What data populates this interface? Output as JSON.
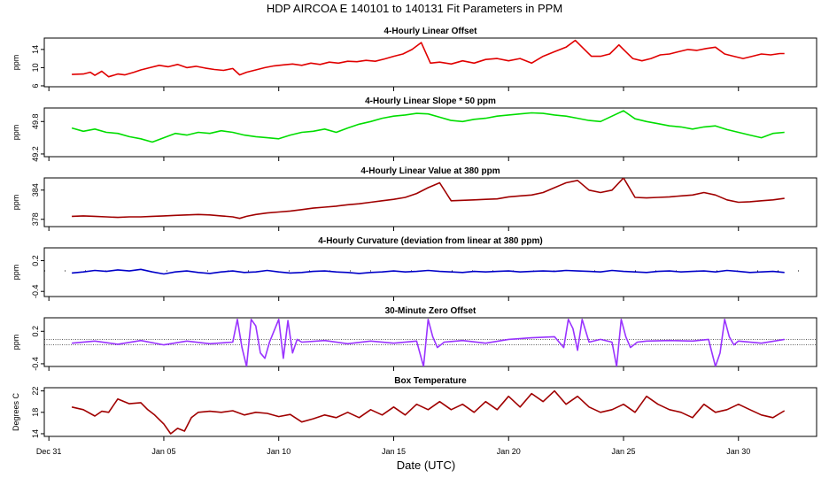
{
  "figure": {
    "title": "HDP   AIRCOA E   140101 to 140131   Fit Parameters in PPM",
    "xlabel": "Date (UTC)",
    "x_tick_labels": [
      "Dec 31",
      "Jan 05",
      "Jan 10",
      "Jan 15",
      "Jan 20",
      "Jan 25",
      "Jan 30"
    ],
    "x_tick_days": [
      0,
      5,
      10,
      15,
      20,
      25,
      30
    ],
    "xlim": [
      -0.2,
      33.4
    ],
    "data_range": [
      1.0,
      32.0
    ]
  },
  "chart_data": [
    {
      "type": "line",
      "title": "4-Hourly Linear Offset",
      "ylabel": "ppm",
      "yticks": [
        6,
        10,
        14
      ],
      "ylim": [
        5.8,
        16.5
      ],
      "color": "#e00000",
      "series_x": [
        1,
        1.5,
        1.8,
        2.0,
        2.3,
        2.6,
        3.0,
        3.3,
        3.7,
        4.0,
        4.4,
        4.8,
        5.2,
        5.6,
        6.0,
        6.4,
        6.8,
        7.2,
        7.6,
        8.0,
        8.3,
        8.6,
        9.0,
        9.4,
        9.8,
        10.2,
        10.6,
        11.0,
        11.4,
        11.8,
        12.2,
        12.6,
        13.0,
        13.4,
        13.8,
        14.2,
        14.6,
        15.0,
        15.4,
        15.8,
        16.2,
        16.6,
        17.0,
        17.5,
        18.0,
        18.5,
        19.0,
        19.5,
        20.0,
        20.5,
        21.0,
        21.5,
        22.0,
        22.5,
        22.9,
        23.2,
        23.6,
        24.0,
        24.4,
        24.8,
        25.0,
        25.4,
        25.8,
        26.2,
        26.6,
        27.0,
        27.4,
        27.8,
        28.2,
        28.6,
        29.0,
        29.4,
        29.8,
        30.2,
        30.6,
        31.0,
        31.4,
        31.8,
        32.0
      ],
      "series_y": [
        8.5,
        8.6,
        9.0,
        8.3,
        9.2,
        8.0,
        8.6,
        8.4,
        9.0,
        9.5,
        10.0,
        10.5,
        10.2,
        10.7,
        10.0,
        10.3,
        9.9,
        9.6,
        9.4,
        9.8,
        8.4,
        9.0,
        9.5,
        10.0,
        10.4,
        10.6,
        10.8,
        10.5,
        11.0,
        10.7,
        11.2,
        11.0,
        11.4,
        11.3,
        11.6,
        11.4,
        11.9,
        12.5,
        13.0,
        14.0,
        15.5,
        11.0,
        11.2,
        10.8,
        11.5,
        11.0,
        11.8,
        12.0,
        11.5,
        12.0,
        11.0,
        12.5,
        13.5,
        14.5,
        16.0,
        14.5,
        12.5,
        12.5,
        13.0,
        15.0,
        14.0,
        12.0,
        11.5,
        12.0,
        12.8,
        13.0,
        13.5,
        14.0,
        13.8,
        14.2,
        14.5,
        13.0,
        12.5,
        12.0,
        12.5,
        13.0,
        12.8,
        13.1,
        13.1
      ]
    },
    {
      "type": "line",
      "title": "4-Hourly Linear Slope * 50 ppm",
      "ylabel": "ppm",
      "yticks": [
        49.2,
        49.8
      ],
      "ylim": [
        49.15,
        50.05
      ],
      "color": "#00dd00",
      "series_x": [
        1,
        1.5,
        2.0,
        2.5,
        3.0,
        3.5,
        4.0,
        4.5,
        5.0,
        5.5,
        6.0,
        6.5,
        7.0,
        7.5,
        8.0,
        8.5,
        9.0,
        9.5,
        10.0,
        10.5,
        11.0,
        11.5,
        12.0,
        12.5,
        13.0,
        13.5,
        14.0,
        14.5,
        15.0,
        15.5,
        16.0,
        16.5,
        17.0,
        17.5,
        18.0,
        18.5,
        19.0,
        19.5,
        20.0,
        20.5,
        21.0,
        21.5,
        22.0,
        22.5,
        23.0,
        23.5,
        24.0,
        24.5,
        25.0,
        25.5,
        26.0,
        26.5,
        27.0,
        27.5,
        28.0,
        28.5,
        29.0,
        29.5,
        30.0,
        30.5,
        31.0,
        31.5,
        32.0
      ],
      "series_y": [
        49.68,
        49.62,
        49.66,
        49.6,
        49.58,
        49.52,
        49.48,
        49.42,
        49.5,
        49.58,
        49.55,
        49.6,
        49.58,
        49.63,
        49.6,
        49.55,
        49.52,
        49.5,
        49.48,
        49.55,
        49.6,
        49.62,
        49.66,
        49.6,
        49.68,
        49.75,
        49.8,
        49.86,
        49.9,
        49.92,
        49.95,
        49.94,
        49.88,
        49.82,
        49.8,
        49.84,
        49.86,
        49.9,
        49.92,
        49.94,
        49.96,
        49.95,
        49.92,
        49.9,
        49.86,
        49.82,
        49.8,
        49.9,
        50.0,
        49.85,
        49.8,
        49.76,
        49.72,
        49.7,
        49.66,
        49.7,
        49.72,
        49.65,
        49.6,
        49.55,
        49.5,
        49.58,
        49.6
      ]
    },
    {
      "type": "line",
      "title": "4-Hourly Linear Value at 380 ppm",
      "ylabel": "ppm",
      "yticks": [
        378,
        384
      ],
      "ylim": [
        376.5,
        386.5
      ],
      "color": "#a00000",
      "series_x": [
        1,
        1.5,
        2.0,
        2.5,
        3.0,
        3.5,
        4.0,
        4.5,
        5.0,
        5.5,
        6.0,
        6.5,
        7.0,
        7.5,
        8.0,
        8.3,
        8.6,
        9.0,
        9.5,
        10.0,
        10.5,
        11.0,
        11.5,
        12.0,
        12.5,
        13.0,
        13.5,
        14.0,
        14.5,
        15.0,
        15.5,
        16.0,
        16.5,
        17.0,
        17.5,
        18.0,
        18.5,
        19.0,
        19.5,
        20.0,
        20.5,
        21.0,
        21.5,
        22.0,
        22.5,
        23.0,
        23.5,
        24.0,
        24.5,
        25.0,
        25.5,
        26.0,
        26.5,
        27.0,
        27.5,
        28.0,
        28.5,
        29.0,
        29.5,
        30.0,
        30.5,
        31.0,
        31.5,
        32.0
      ],
      "series_y": [
        378.6,
        378.7,
        378.6,
        378.5,
        378.4,
        378.5,
        378.5,
        378.6,
        378.7,
        378.8,
        378.9,
        379.0,
        378.9,
        378.7,
        378.5,
        378.2,
        378.6,
        379.0,
        379.3,
        379.5,
        379.7,
        380.0,
        380.3,
        380.5,
        380.7,
        381.0,
        381.2,
        381.5,
        381.8,
        382.1,
        382.5,
        383.3,
        384.5,
        385.5,
        381.8,
        381.9,
        382.0,
        382.1,
        382.2,
        382.6,
        382.8,
        383.0,
        383.5,
        384.5,
        385.5,
        386.0,
        384.0,
        383.5,
        384.0,
        386.5,
        382.5,
        382.4,
        382.5,
        382.6,
        382.8,
        383.0,
        383.5,
        383.0,
        382.0,
        381.5,
        381.6,
        381.8,
        382.0,
        382.3
      ]
    },
    {
      "type": "line",
      "title": "4-Hourly Curvature (deviation from linear at 380 ppm)",
      "ylabel": "ppm",
      "yticks": [
        -0.4,
        0.2
      ],
      "ylim": [
        -0.5,
        0.45
      ],
      "color": "#0000c8",
      "series_x": [
        1,
        1.5,
        2.0,
        2.5,
        3.0,
        3.5,
        4.0,
        4.5,
        5.0,
        5.5,
        6.0,
        6.5,
        7.0,
        7.5,
        8.0,
        8.5,
        9.0,
        9.5,
        10.0,
        10.5,
        11.0,
        11.5,
        12.0,
        12.5,
        13.0,
        13.5,
        14.0,
        14.5,
        15.0,
        15.5,
        16.0,
        16.5,
        17.0,
        17.5,
        18.0,
        18.5,
        19.0,
        19.5,
        20.0,
        20.5,
        21.0,
        21.5,
        22.0,
        22.5,
        23.0,
        23.5,
        24.0,
        24.5,
        25.0,
        25.5,
        26.0,
        26.5,
        27.0,
        27.5,
        28.0,
        28.5,
        29.0,
        29.5,
        30.0,
        30.5,
        31.0,
        31.5,
        32.0
      ],
      "series_y": [
        -0.04,
        -0.02,
        0.01,
        -0.01,
        0.02,
        0.0,
        0.03,
        -0.02,
        -0.06,
        -0.02,
        0.0,
        -0.03,
        -0.05,
        -0.02,
        0.0,
        -0.03,
        -0.02,
        0.01,
        -0.02,
        -0.04,
        -0.03,
        -0.01,
        0.0,
        -0.02,
        -0.03,
        -0.05,
        -0.03,
        -0.02,
        0.0,
        -0.02,
        -0.01,
        0.01,
        -0.01,
        -0.02,
        -0.03,
        -0.01,
        -0.02,
        -0.01,
        0.0,
        -0.02,
        -0.01,
        0.0,
        -0.01,
        0.01,
        0.0,
        -0.01,
        -0.02,
        0.01,
        -0.01,
        -0.02,
        -0.03,
        -0.01,
        0.0,
        -0.02,
        -0.01,
        0.0,
        -0.02,
        0.01,
        -0.01,
        -0.03,
        -0.02,
        -0.01,
        -0.03
      ]
    },
    {
      "type": "line",
      "title": "30-Minute Zero Offset",
      "ylabel": "ppm",
      "yticks": [
        -0.4,
        0.2
      ],
      "ylim": [
        -0.45,
        0.45
      ],
      "color": "#9933ff",
      "ref_lines": [
        0.05,
        -0.05
      ],
      "series_x": [
        1,
        2,
        3,
        4,
        5,
        6,
        7,
        8.0,
        8.2,
        8.4,
        8.6,
        8.8,
        9.0,
        9.2,
        9.4,
        9.6,
        10.0,
        10.2,
        10.4,
        10.6,
        10.8,
        11.0,
        12,
        13,
        14,
        15,
        16.0,
        16.3,
        16.5,
        16.7,
        16.9,
        17.2,
        18,
        19,
        20,
        21,
        22.0,
        22.4,
        22.6,
        22.8,
        23.0,
        23.2,
        23.5,
        24,
        24.5,
        24.7,
        24.9,
        25.1,
        25.3,
        25.6,
        26,
        27,
        28,
        28.7,
        29.0,
        29.2,
        29.4,
        29.6,
        29.8,
        30,
        31,
        32
      ],
      "series_y": [
        -0.02,
        0.02,
        -0.04,
        0.03,
        -0.05,
        0.02,
        -0.03,
        0.0,
        0.42,
        -0.1,
        -0.45,
        0.42,
        0.3,
        -0.2,
        -0.3,
        0.0,
        0.42,
        -0.3,
        0.4,
        -0.2,
        0.05,
        0.0,
        0.03,
        -0.03,
        0.02,
        -0.02,
        0.02,
        -0.45,
        0.42,
        0.1,
        -0.1,
        0.0,
        0.03,
        -0.02,
        0.05,
        0.08,
        0.1,
        -0.1,
        0.42,
        0.25,
        -0.15,
        0.42,
        0.0,
        0.05,
        0.0,
        -0.45,
        0.42,
        0.1,
        -0.1,
        0.0,
        0.02,
        0.03,
        0.02,
        0.05,
        -0.45,
        -0.2,
        0.42,
        0.1,
        -0.05,
        0.02,
        -0.02,
        0.05
      ]
    },
    {
      "type": "line",
      "title": "Box Temperature",
      "ylabel": "Degrees C",
      "yticks": [
        14,
        18,
        22
      ],
      "ylim": [
        13.5,
        22.6
      ],
      "color": "#a00000",
      "series_x": [
        1,
        1.5,
        2.0,
        2.3,
        2.6,
        3.0,
        3.5,
        4.0,
        4.3,
        4.6,
        5.0,
        5.3,
        5.6,
        5.9,
        6.2,
        6.5,
        7.0,
        7.5,
        8.0,
        8.5,
        9.0,
        9.5,
        10.0,
        10.5,
        11.0,
        11.5,
        12.0,
        12.5,
        13.0,
        13.5,
        14.0,
        14.5,
        15.0,
        15.5,
        16.0,
        16.5,
        17.0,
        17.5,
        18.0,
        18.5,
        19.0,
        19.5,
        20.0,
        20.5,
        21.0,
        21.5,
        22.0,
        22.5,
        23.0,
        23.5,
        24.0,
        24.5,
        25.0,
        25.5,
        26.0,
        26.5,
        27.0,
        27.5,
        28.0,
        28.5,
        29.0,
        29.5,
        30.0,
        30.5,
        31.0,
        31.5,
        32.0
      ],
      "series_y": [
        19.0,
        18.5,
        17.3,
        18.2,
        18.0,
        20.5,
        19.6,
        19.8,
        18.5,
        17.5,
        15.8,
        14.0,
        15.0,
        14.5,
        17.0,
        18.0,
        18.2,
        18.0,
        18.3,
        17.5,
        18.0,
        17.8,
        17.2,
        17.6,
        16.2,
        16.8,
        17.5,
        17.0,
        18.0,
        17.0,
        18.5,
        17.5,
        19.0,
        17.5,
        19.5,
        18.5,
        20.0,
        18.5,
        19.5,
        18.0,
        20.0,
        18.5,
        21.0,
        19.0,
        21.5,
        20.0,
        22.0,
        19.5,
        21.0,
        19.0,
        18.0,
        18.5,
        19.5,
        18.0,
        21.0,
        19.5,
        18.5,
        18.0,
        17.0,
        19.5,
        18.0,
        18.5,
        19.5,
        18.5,
        17.5,
        17.0,
        18.3
      ]
    }
  ]
}
